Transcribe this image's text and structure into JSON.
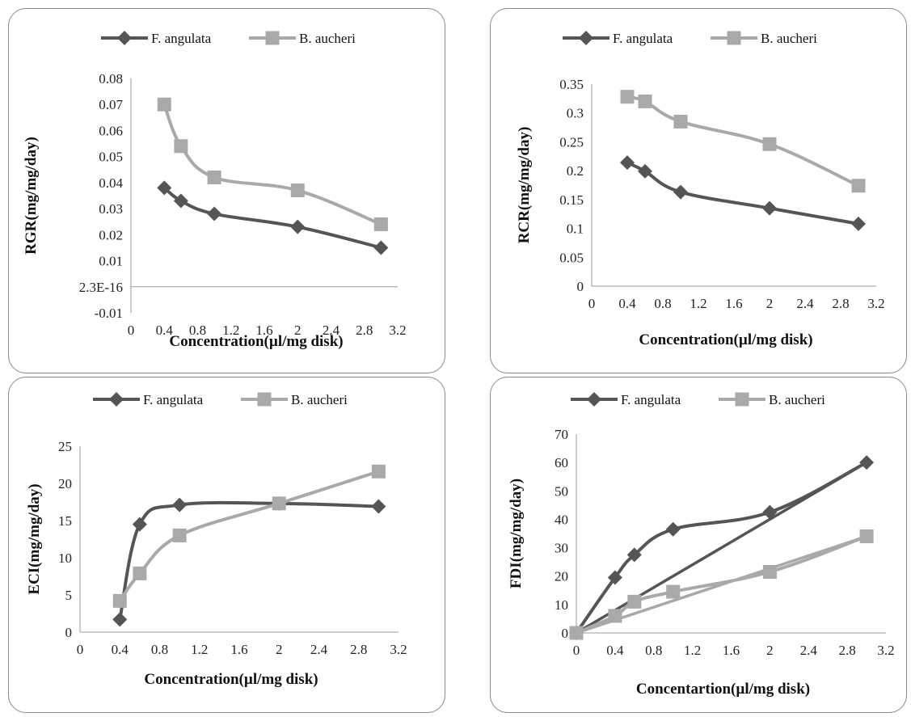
{
  "colors": {
    "f_angulata": "#555555",
    "b_aucheri": "#a9a9a9",
    "frame": "#8a8a8a"
  },
  "chart_data": [
    {
      "id": "rgr",
      "type": "line",
      "xlabel": "Concentration(µl/mg disk)",
      "ylabel": "RGR(mg/mg/day)",
      "xlim": [
        0,
        3.2
      ],
      "ylim": [
        -0.01,
        0.08
      ],
      "xticks": [
        "0",
        "0.4",
        "0.8",
        "1.2",
        "1.6",
        "2",
        "2.4",
        "2.8",
        "3.2"
      ],
      "yticks": [
        "-0.01",
        "2.3E-16",
        "0.01",
        "0.02",
        "0.03",
        "0.04",
        "0.05",
        "0.06",
        "0.07",
        "0.08"
      ],
      "legend": "top",
      "grid": false,
      "series": [
        {
          "name": "F. angulata",
          "marker": "diamond",
          "x": [
            0.4,
            0.6,
            1,
            2,
            3
          ],
          "y": [
            0.038,
            0.033,
            0.028,
            0.023,
            0.015
          ]
        },
        {
          "name": "B. aucheri",
          "marker": "square",
          "x": [
            0.4,
            0.6,
            1,
            2,
            3
          ],
          "y": [
            0.07,
            0.054,
            0.042,
            0.037,
            0.024
          ]
        }
      ]
    },
    {
      "id": "rcr",
      "type": "line",
      "xlabel": "Concentration(µl/mg disk)",
      "ylabel": "RCR(mg/mg/day)",
      "xlim": [
        0,
        3.2
      ],
      "ylim": [
        0,
        0.35
      ],
      "xticks": [
        "0",
        "0.4",
        "0.8",
        "1.2",
        "1.6",
        "2",
        "2.4",
        "2.8",
        "3.2"
      ],
      "yticks": [
        "0",
        "0.05",
        "0.1",
        "0.15",
        "0.2",
        "0.25",
        "0.3",
        "0.35"
      ],
      "legend": "top",
      "grid": false,
      "series": [
        {
          "name": "F. angulata",
          "marker": "diamond",
          "x": [
            0.4,
            0.6,
            1,
            2,
            3
          ],
          "y": [
            0.214,
            0.199,
            0.163,
            0.135,
            0.108
          ]
        },
        {
          "name": "B. aucheri",
          "marker": "square",
          "x": [
            0.4,
            0.6,
            1,
            2,
            3
          ],
          "y": [
            0.328,
            0.32,
            0.285,
            0.246,
            0.174
          ]
        }
      ]
    },
    {
      "id": "eci",
      "type": "line",
      "xlabel": "Concentration(µl/mg disk)",
      "ylabel": "ECI(mg/mg/day)",
      "xlim": [
        0,
        3.2
      ],
      "ylim": [
        0,
        25
      ],
      "xticks": [
        "0",
        "0.4",
        "0.8",
        "1.2",
        "1.6",
        "2",
        "2.4",
        "2.8",
        "3.2"
      ],
      "yticks": [
        "0",
        "5",
        "10",
        "15",
        "20",
        "25"
      ],
      "legend": "top",
      "grid": false,
      "series": [
        {
          "name": "F. angulata",
          "marker": "diamond",
          "x": [
            0.4,
            0.6,
            1,
            2,
            3
          ],
          "y": [
            1.7,
            14.5,
            17.1,
            17.3,
            16.9
          ]
        },
        {
          "name": "B. aucheri",
          "marker": "square",
          "x": [
            0.4,
            0.6,
            1,
            2,
            3
          ],
          "y": [
            4.2,
            7.9,
            13,
            17.3,
            21.6
          ]
        }
      ]
    },
    {
      "id": "fdi",
      "type": "line",
      "xlabel": "Concentartion(µl/mg disk)",
      "ylabel": "FDI(mg/mg/day)",
      "xlim": [
        0,
        3.2
      ],
      "ylim": [
        0,
        70
      ],
      "xticks": [
        "0",
        "0.4",
        "0.8",
        "1.2",
        "1.6",
        "2",
        "2.4",
        "2.8",
        "3.2"
      ],
      "yticks": [
        "0",
        "10",
        "20",
        "30",
        "40",
        "50",
        "60",
        "70"
      ],
      "legend": "top",
      "grid": false,
      "series": [
        {
          "name": "F. angulata",
          "marker": "diamond",
          "x": [
            0,
            0.4,
            0.6,
            1,
            2,
            3
          ],
          "y": [
            0,
            19.5,
            27.5,
            36.5,
            42.5,
            60
          ]
        },
        {
          "name": "B. aucheri",
          "marker": "square",
          "x": [
            0,
            0.4,
            0.6,
            1,
            2,
            3
          ],
          "y": [
            0,
            6,
            11,
            14.5,
            21.5,
            34
          ]
        }
      ],
      "trendlines": [
        {
          "series": "F. angulata",
          "x": [
            0,
            3
          ],
          "y": [
            0,
            60
          ]
        },
        {
          "series": "B. aucheri",
          "x": [
            0,
            3
          ],
          "y": [
            0,
            34
          ]
        }
      ]
    }
  ]
}
